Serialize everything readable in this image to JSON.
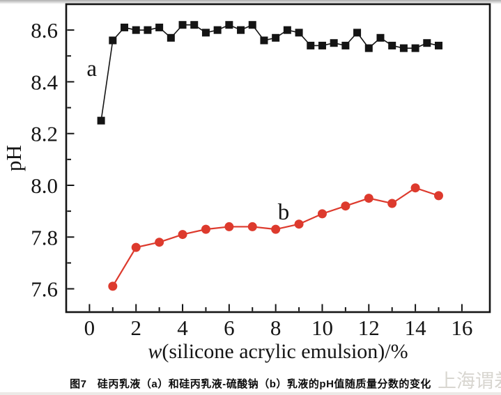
{
  "page": {
    "caption": "图7　硅丙乳液（a）和硅丙乳液-硫酸钠（b）乳液的pH值随质量分数的变化",
    "watermark": "上海谓差"
  },
  "chart_data": {
    "type": "line",
    "title": "",
    "xlabel": "w(silicone acrylic emulsion)/%",
    "xlabel_parts": {
      "italic": "w",
      "rest": "(silicone acrylic emulsion)/%"
    },
    "ylabel": "pH",
    "xlim": [
      -1,
      17.2
    ],
    "ylim": [
      7.51,
      8.7
    ],
    "grid": false,
    "legend_position": "none (inline point labels a and b)",
    "x_major_ticks": [
      0,
      2,
      4,
      6,
      8,
      10,
      12,
      14,
      16
    ],
    "x_minor_ticks": [
      1,
      3,
      5,
      7,
      9,
      11,
      13,
      15
    ],
    "y_major_ticks": [
      7.6,
      7.8,
      8.0,
      8.2,
      8.4,
      8.6
    ],
    "y_minor_ticks": [
      7.7,
      7.9,
      8.1,
      8.3,
      8.5
    ],
    "frame_color": "#141414",
    "series": [
      {
        "name": "a",
        "description": "silicone acrylic emulsion",
        "marker": "square",
        "color": "#141414",
        "line_width": 1.6,
        "marker_size": 11,
        "label_pos": {
          "x": 0.1,
          "y": 8.455
        },
        "x": [
          0.5,
          1,
          1.5,
          2,
          2.5,
          3,
          3.5,
          4,
          4.5,
          5,
          5.5,
          6,
          6.5,
          7,
          7.5,
          8,
          8.5,
          9,
          9.5,
          10,
          10.5,
          11,
          11.5,
          12,
          12.5,
          13,
          13.5,
          14,
          14.5,
          15
        ],
        "y": [
          8.25,
          8.56,
          8.61,
          8.6,
          8.6,
          8.61,
          8.57,
          8.62,
          8.62,
          8.59,
          8.6,
          8.62,
          8.6,
          8.62,
          8.56,
          8.57,
          8.6,
          8.59,
          8.54,
          8.54,
          8.55,
          8.54,
          8.59,
          8.53,
          8.57,
          8.54,
          8.53,
          8.53,
          8.55,
          8.54
        ]
      },
      {
        "name": "b",
        "description": "silicone acrylic emulsion - sodium sulfate",
        "marker": "circle",
        "color": "#dd3a2d",
        "line_width": 2.2,
        "marker_size": 13,
        "label_pos": {
          "x": 8.34,
          "y": 7.9
        },
        "x": [
          1,
          2,
          3,
          4,
          5,
          6,
          7,
          8,
          9,
          10,
          11,
          12,
          13,
          14,
          15
        ],
        "y": [
          7.61,
          7.76,
          7.78,
          7.81,
          7.83,
          7.84,
          7.84,
          7.83,
          7.85,
          7.89,
          7.92,
          7.95,
          7.93,
          7.99,
          7.96
        ]
      }
    ]
  }
}
